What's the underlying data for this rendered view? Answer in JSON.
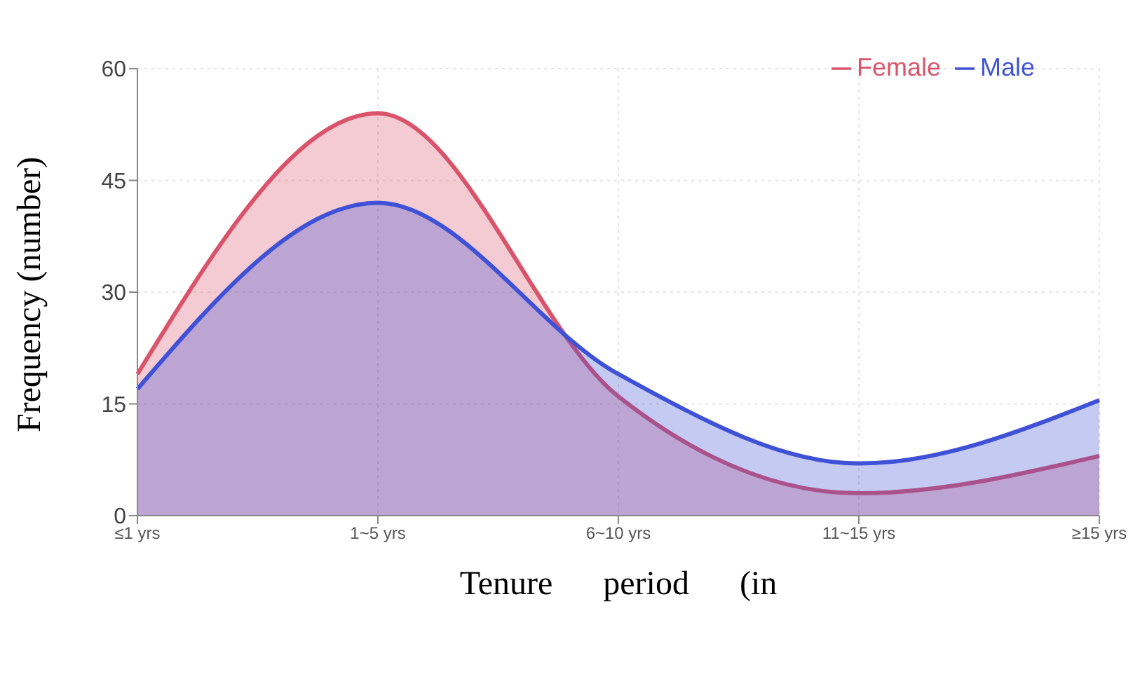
{
  "chart_data": {
    "type": "area",
    "xlabel": "Tenure      period      (in",
    "ylabel": "Frequency (number)",
    "categories": [
      "≤1 yrs",
      "1~5 yrs",
      "6~10 yrs",
      "11~15 yrs",
      "≥15 yrs"
    ],
    "series": [
      {
        "name": "Female",
        "color": "#d9546a",
        "values": [
          19,
          54,
          16,
          3,
          8
        ]
      },
      {
        "name": "Male",
        "color": "#3f51d6",
        "values": [
          17,
          42,
          19,
          7,
          15.5
        ]
      }
    ],
    "ylim": [
      0,
      60
    ],
    "yticks": [
      0,
      15,
      30,
      45,
      60
    ],
    "grid": true,
    "legend": "top right",
    "marker": "none",
    "line_style": "solid"
  }
}
